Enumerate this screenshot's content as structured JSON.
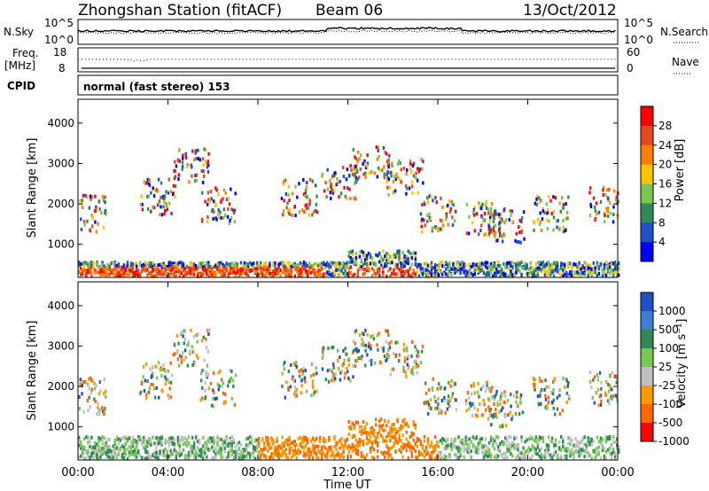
{
  "header": {
    "station": "Zhongshan Station (fitACF)",
    "beam": "Beam 06",
    "date": "13/Oct/2012"
  },
  "noise_panel": {
    "left_label": "N.Sky",
    "right_label": "N.Search",
    "y_top_left": "10^5",
    "y_bottom_left": "10^0",
    "y_top_right": "10^5",
    "y_bottom_right": "10^0"
  },
  "freq_panel": {
    "left_label_1": "Freq.",
    "left_label_2": "[MHz]",
    "y_top_left": "18",
    "y_bottom_left": "8",
    "right_label": "Nave",
    "y_top_right": "60",
    "y_bottom_right": "0"
  },
  "cpid": {
    "label": "CPID",
    "value": "normal (fast stereo) 153"
  },
  "x_axis": {
    "ticks": [
      "00:00",
      "04:00",
      "08:00",
      "12:00",
      "16:00",
      "20:00",
      "00:00"
    ],
    "label": "Time UT"
  },
  "chart_data": [
    {
      "type": "heatmap",
      "ylabel": "Slant Range [km]",
      "yticks": [
        1000,
        2000,
        3000,
        4000
      ],
      "ylim": [
        180,
        4590
      ],
      "xlim_hours": [
        0,
        24
      ],
      "colorbar": {
        "label": "Power [dB]",
        "ticks": [
          "28",
          "24",
          "20",
          "16",
          "12",
          "8",
          "4"
        ],
        "colors": [
          "#ff0000",
          "#e8481a",
          "#ff8000",
          "#ffc400",
          "#78c850",
          "#2e8b57",
          "#1e50c8",
          "#0000ff"
        ]
      }
    },
    {
      "type": "heatmap",
      "ylabel": "Slant Range [km]",
      "yticks": [
        1000,
        2000,
        3000,
        4000
      ],
      "ylim": [
        180,
        4590
      ],
      "xlim_hours": [
        0,
        24
      ],
      "colorbar": {
        "label": "Velocity [m s⁻¹]",
        "ticks": [
          "1000",
          "500",
          "100",
          "25",
          "-25",
          "-100",
          "-500",
          "-1000"
        ],
        "colors": [
          "#1e50c8",
          "#3a7fd5",
          "#2e8b57",
          "#78c850",
          "#c0c0c0",
          "#ff9900",
          "#ff6600",
          "#ff0000"
        ]
      }
    }
  ]
}
